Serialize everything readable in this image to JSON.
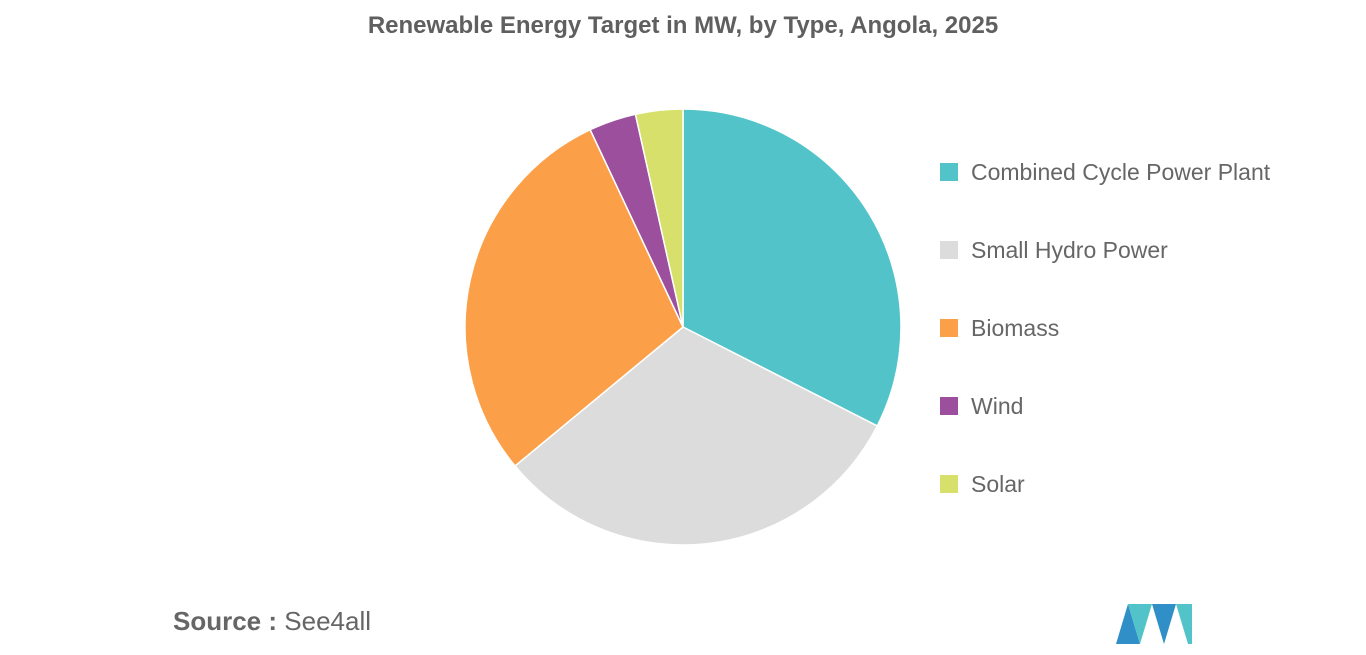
{
  "chart_data": {
    "type": "pie",
    "title": "Renewable Energy Target in MW, by Type, Angola, 2025",
    "categories": [
      "Combined Cycle Power Plant",
      "Small Hydro Power",
      "Biomass",
      "Wind",
      "Solar"
    ],
    "values": [
      32.5,
      31.5,
      29,
      3.5,
      3.5
    ],
    "colors": [
      "#52c4c9",
      "#dcdcdc",
      "#fba048",
      "#9b4f9c",
      "#d6e06a"
    ],
    "legend_position": "right"
  },
  "source": {
    "label": "Source :",
    "value": "See4all"
  },
  "logo": {
    "icon": "mordor-intelligence-logo",
    "colors": [
      "#2f8fc6",
      "#52c4c9"
    ]
  }
}
